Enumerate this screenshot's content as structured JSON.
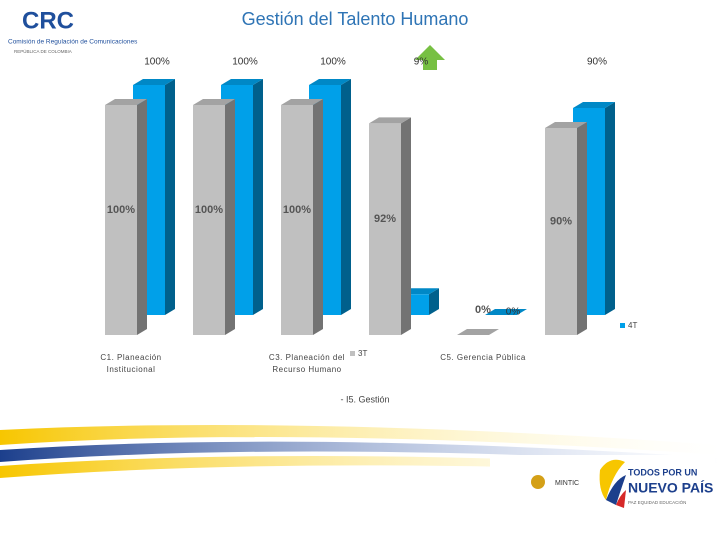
{
  "chart_data": {
    "type": "bar3d",
    "title": "Gestión del Talento Humano",
    "x_label": "- I5. Gestión",
    "categories": [
      "C1. Planeación Institucional",
      null,
      "C3. Planeación del Recurso Humano",
      null,
      "C5. Gerencia Pública",
      null
    ],
    "series": [
      {
        "name": "3T",
        "color": "#c0c0c0",
        "values": [
          100,
          100,
          100,
          92,
          0,
          90
        ],
        "value_labels": [
          "100%",
          "100%",
          "100%",
          "92%",
          "0%",
          "90%"
        ]
      },
      {
        "name": "4T",
        "color": "#00a0e9",
        "values": [
          100,
          100,
          100,
          9,
          0,
          90
        ],
        "value_labels": [
          "100%",
          "100%",
          "100%",
          "9%",
          "0%",
          "90%"
        ]
      }
    ],
    "ylim": [
      0,
      100
    ]
  },
  "logos": {
    "crc": "CRC",
    "crc_name": "Comisión de Regulación de Comunicaciones",
    "crc_country": "REPÚBLICA DE COLOMBIA",
    "mintic": "MINTIC",
    "slogan_top": "TODOS POR UN",
    "slogan_main": "NUEVO PAÍS",
    "slogan_sub": "PAZ  EQUIDAD  EDUCACIÓN"
  }
}
